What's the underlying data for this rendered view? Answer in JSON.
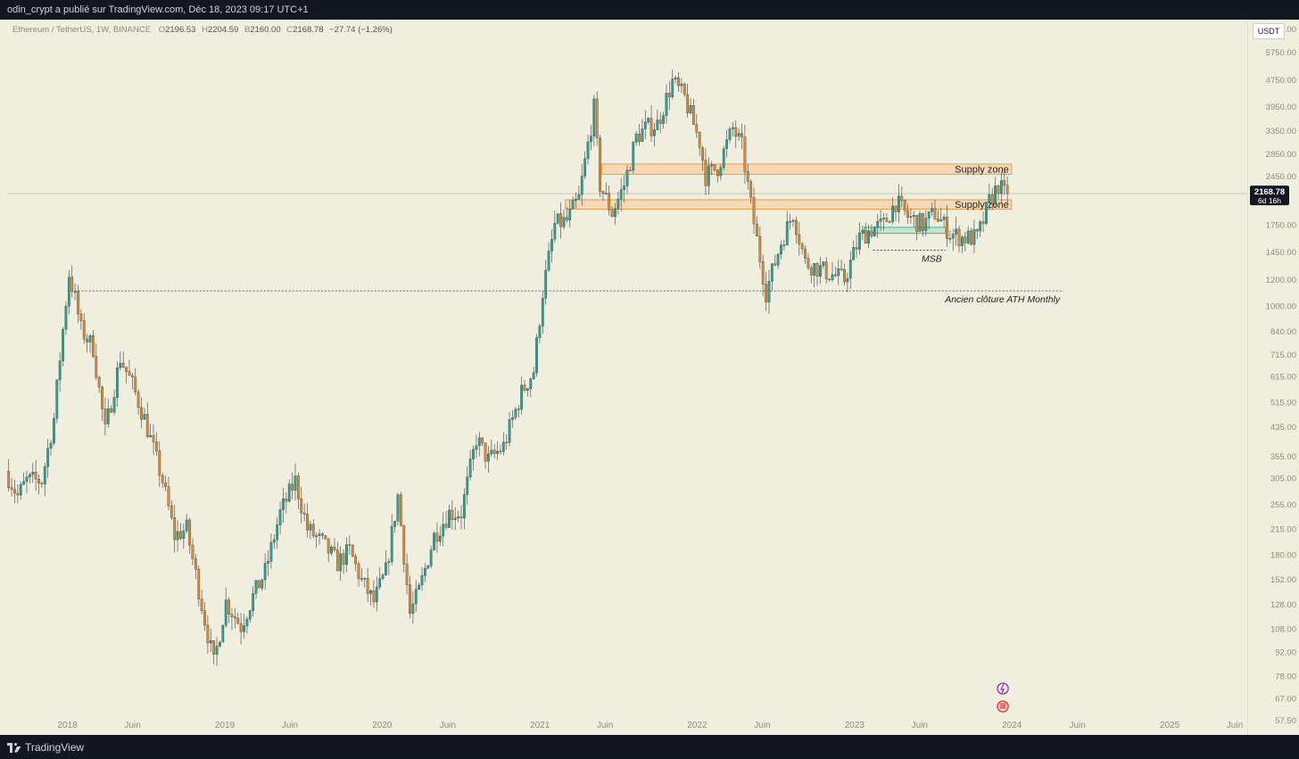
{
  "header": {
    "publisher": "odin_crypt a publié sur TradingView.com, Déc 18, 2023 09:17 UTC+1"
  },
  "legend": {
    "symbol": "Ethereum / TetherUS, 1W, BINANCE",
    "o_label": "O",
    "o": "2196.53",
    "h_label": "H",
    "h": "2204.59",
    "l_label": "B",
    "l": "2160.00",
    "c_label": "C",
    "c": "2168.78",
    "change": "−27.74 (−1.26%)"
  },
  "currency_button": "USDT",
  "footer": {
    "brand": "TradingView"
  },
  "colors": {
    "up": "#26a69a",
    "down": "#e08a32",
    "background": "#f0efdf",
    "zone_fill": "#f8d6ae",
    "zone_border": "#e39a55"
  },
  "chart_data": {
    "type": "candlestick",
    "title": "",
    "xlabel": "",
    "ylabel": "",
    "y_scale": "log",
    "ylim": [
      52,
      7200
    ],
    "x_range": [
      "2017-08-14",
      "2025-06-30"
    ],
    "grid": false,
    "y_ticks": [
      "6750.00",
      "5750.00",
      "4750.00",
      "3950.00",
      "3350.00",
      "2850.00",
      "2450.00",
      "1750.00",
      "1450.00",
      "1200.00",
      "1000.00",
      "840.00",
      "715.00",
      "615.00",
      "515.00",
      "435.00",
      "355.00",
      "305.00",
      "255.00",
      "215.00",
      "180.00",
      "152.00",
      "128.00",
      "108.00",
      "92.00",
      "78.00",
      "67.00",
      "57.50"
    ],
    "x_ticks": [
      {
        "label": "2018",
        "date": "2018-01-01"
      },
      {
        "label": "Juin",
        "date": "2018-06-01"
      },
      {
        "label": "2019",
        "date": "2019-01-01"
      },
      {
        "label": "Juin",
        "date": "2019-06-01"
      },
      {
        "label": "2020",
        "date": "2020-01-01"
      },
      {
        "label": "Juin",
        "date": "2020-06-01"
      },
      {
        "label": "2021",
        "date": "2021-01-01"
      },
      {
        "label": "Juin",
        "date": "2021-06-01"
      },
      {
        "label": "2022",
        "date": "2022-01-01"
      },
      {
        "label": "Juin",
        "date": "2022-06-01"
      },
      {
        "label": "2023",
        "date": "2023-01-01"
      },
      {
        "label": "Juin",
        "date": "2023-06-01"
      },
      {
        "label": "2024",
        "date": "2024-01-01"
      },
      {
        "label": "Juin",
        "date": "2024-06-01"
      },
      {
        "label": "2025",
        "date": "2025-01-01"
      },
      {
        "label": "Juin",
        "date": "2025-06-01"
      }
    ],
    "last_price": {
      "value": 2168.78,
      "label": "2168.78",
      "countdown": "6d 16h"
    },
    "price_path": [
      [
        "2017-08-14",
        320
      ],
      [
        "2017-09-11",
        270
      ],
      [
        "2017-10-02",
        300
      ],
      [
        "2017-11-06",
        300
      ],
      [
        "2017-12-04",
        460
      ],
      [
        "2017-12-18",
        700
      ],
      [
        "2018-01-08",
        1250
      ],
      [
        "2018-01-22",
        1050
      ],
      [
        "2018-02-05",
        850
      ],
      [
        "2018-03-05",
        750
      ],
      [
        "2018-04-02",
        420
      ],
      [
        "2018-05-07",
        700
      ],
      [
        "2018-06-04",
        580
      ],
      [
        "2018-07-02",
        460
      ],
      [
        "2018-08-13",
        300
      ],
      [
        "2018-09-10",
        205
      ],
      [
        "2018-10-08",
        215
      ],
      [
        "2018-11-19",
        115
      ],
      [
        "2018-12-10",
        85
      ],
      [
        "2019-01-07",
        130
      ],
      [
        "2019-02-11",
        110
      ],
      [
        "2019-03-11",
        135
      ],
      [
        "2019-04-08",
        160
      ],
      [
        "2019-05-13",
        240
      ],
      [
        "2019-06-17",
        300
      ],
      [
        "2019-07-15",
        215
      ],
      [
        "2019-08-19",
        195
      ],
      [
        "2019-09-23",
        170
      ],
      [
        "2019-10-21",
        185
      ],
      [
        "2019-11-18",
        150
      ],
      [
        "2019-12-16",
        130
      ],
      [
        "2020-01-13",
        160
      ],
      [
        "2020-02-10",
        270
      ],
      [
        "2020-03-09",
        120
      ],
      [
        "2020-03-30",
        140
      ],
      [
        "2020-05-04",
        205
      ],
      [
        "2020-06-08",
        240
      ],
      [
        "2020-07-06",
        240
      ],
      [
        "2020-08-10",
        400
      ],
      [
        "2020-09-07",
        345
      ],
      [
        "2020-10-12",
        380
      ],
      [
        "2020-11-23",
        550
      ],
      [
        "2020-12-21",
        640
      ],
      [
        "2021-01-11",
        1100
      ],
      [
        "2021-02-08",
        1750
      ],
      [
        "2021-03-08",
        1800
      ],
      [
        "2021-04-05",
        2100
      ],
      [
        "2021-05-10",
        3900
      ],
      [
        "2021-05-24",
        2300
      ],
      [
        "2021-06-21",
        1900
      ],
      [
        "2021-07-19",
        2300
      ],
      [
        "2021-08-16",
        3200
      ],
      [
        "2021-09-06",
        3400
      ],
      [
        "2021-10-04",
        3500
      ],
      [
        "2021-11-08",
        4700
      ],
      [
        "2021-12-06",
        4200
      ],
      [
        "2022-01-10",
        3100
      ],
      [
        "2022-01-24",
        2450
      ],
      [
        "2022-02-21",
        2600
      ],
      [
        "2022-03-28",
        3400
      ],
      [
        "2022-04-18",
        3000
      ],
      [
        "2022-05-09",
        2000
      ],
      [
        "2022-06-13",
        1100
      ],
      [
        "2022-07-18",
        1550
      ],
      [
        "2022-08-15",
        1900
      ],
      [
        "2022-09-12",
        1350
      ],
      [
        "2022-10-10",
        1300
      ],
      [
        "2022-11-07",
        1250
      ],
      [
        "2022-12-12",
        1200
      ],
      [
        "2023-01-16",
        1600
      ],
      [
        "2023-02-13",
        1700
      ],
      [
        "2023-03-13",
        1750
      ],
      [
        "2023-04-10",
        2050
      ],
      [
        "2023-05-08",
        1850
      ],
      [
        "2023-06-12",
        1750
      ],
      [
        "2023-07-10",
        1900
      ],
      [
        "2023-08-14",
        1650
      ],
      [
        "2023-09-11",
        1600
      ],
      [
        "2023-10-16",
        1600
      ],
      [
        "2023-10-30",
        1800
      ],
      [
        "2023-11-13",
        2050
      ],
      [
        "2023-12-04",
        2300
      ],
      [
        "2023-12-18",
        2168.78
      ]
    ],
    "annotations": [
      {
        "type": "zone",
        "label": "Supply zone",
        "from": "2021-05-24",
        "to": "2023-12-31",
        "low": 2480,
        "high": 2660
      },
      {
        "type": "zone",
        "label": "Supply zone",
        "from": "2021-03-01",
        "to": "2023-12-31",
        "low": 1950,
        "high": 2080
      },
      {
        "type": "zone",
        "label": "",
        "from": "2023-01-23",
        "to": "2023-07-31",
        "low": 1650,
        "high": 1720
      },
      {
        "type": "hline",
        "label": "MSB",
        "from": "2023-02-13",
        "to": "2023-07-31",
        "value": 1470
      },
      {
        "type": "hline",
        "label": "Ancien clôture ATH Monthly",
        "from": "2018-01-01",
        "to": "2024-04-30",
        "value": 1110
      }
    ]
  }
}
